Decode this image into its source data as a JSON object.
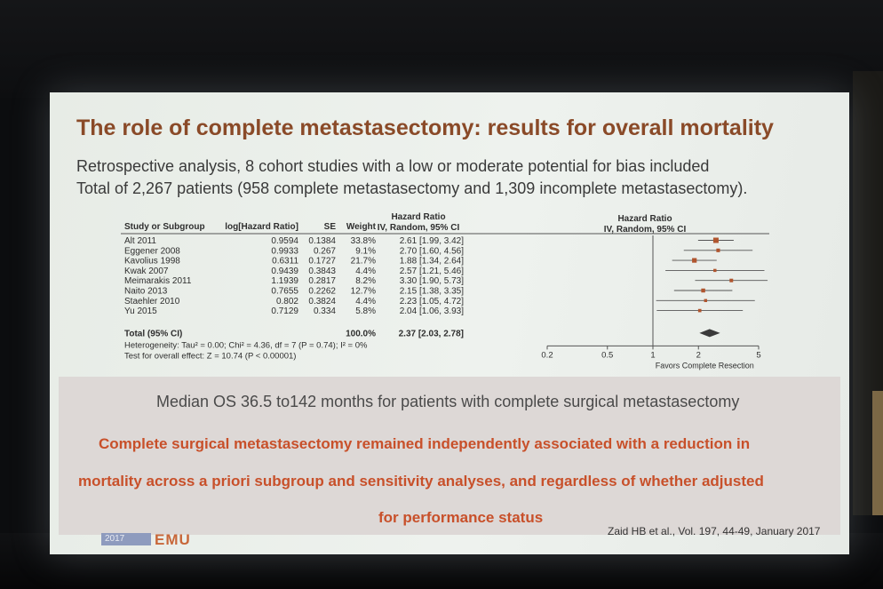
{
  "slide": {
    "title": "The role of complete metastasectomy: results for overall mortality",
    "subtitle_lines": [
      "Retrospective analysis, 8 cohort studies with a low or moderate potential for bias included",
      "Total of 2,267 patients (958 complete metastasectomy and 1,309 incomplete metastasectomy)."
    ],
    "median_text": "Median OS 36.5 to142 months for patients with complete surgical metastasectomy",
    "conclusion_lines": [
      "Complete surgical metastasectomy remained independently associated with a reduction in",
      "mortality across a priori subgroup and sensitivity analyses, and regardless of whether adjusted",
      "for performance status"
    ],
    "citation": "Zaid HB et al., Vol. 197, 44-49, January 2017",
    "logo_year": "2017",
    "logo_mark": "EMU"
  },
  "chart_data": {
    "type": "forest",
    "headers": {
      "study": "Study or Subgroup",
      "log_hr": "log[Hazard Ratio]",
      "se": "SE",
      "weight": "Weight",
      "hr_top": "Hazard Ratio",
      "hr_sub": "IV, Random, 95% CI",
      "plot_top": "Hazard Ratio",
      "plot_sub": "IV, Random, 95% CI"
    },
    "studies": [
      {
        "name": "Alt 2011",
        "log_hr": "0.9594",
        "se": "0.1384",
        "weight": "33.8%",
        "ci_text": "2.61 [1.99, 3.42]",
        "hr": 2.61,
        "lower": 1.99,
        "upper": 3.42,
        "weight_value": 33.8
      },
      {
        "name": "Eggener 2008",
        "log_hr": "0.9933",
        "se": "0.267",
        "weight": "9.1%",
        "ci_text": "2.70 [1.60, 4.56]",
        "hr": 2.7,
        "lower": 1.6,
        "upper": 4.56,
        "weight_value": 9.1
      },
      {
        "name": "Kavolius 1998",
        "log_hr": "0.6311",
        "se": "0.1727",
        "weight": "21.7%",
        "ci_text": "1.88 [1.34, 2.64]",
        "hr": 1.88,
        "lower": 1.34,
        "upper": 2.64,
        "weight_value": 21.7
      },
      {
        "name": "Kwak 2007",
        "log_hr": "0.9439",
        "se": "0.3843",
        "weight": "4.4%",
        "ci_text": "2.57 [1.21, 5.46]",
        "hr": 2.57,
        "lower": 1.21,
        "upper": 5.46,
        "weight_value": 4.4
      },
      {
        "name": "Meimarakis 2011",
        "log_hr": "1.1939",
        "se": "0.2817",
        "weight": "8.2%",
        "ci_text": "3.30 [1.90, 5.73]",
        "hr": 3.3,
        "lower": 1.9,
        "upper": 5.73,
        "weight_value": 8.2
      },
      {
        "name": "Naito 2013",
        "log_hr": "0.7655",
        "se": "0.2262",
        "weight": "12.7%",
        "ci_text": "2.15 [1.38, 3.35]",
        "hr": 2.15,
        "lower": 1.38,
        "upper": 3.35,
        "weight_value": 12.7
      },
      {
        "name": "Staehler 2010",
        "log_hr": "0.802",
        "se": "0.3824",
        "weight": "4.4%",
        "ci_text": "2.23 [1.05, 4.72]",
        "hr": 2.23,
        "lower": 1.05,
        "upper": 4.72,
        "weight_value": 4.4
      },
      {
        "name": "Yu 2015",
        "log_hr": "0.7129",
        "se": "0.334",
        "weight": "5.8%",
        "ci_text": "2.04 [1.06, 3.93]",
        "hr": 2.04,
        "lower": 1.06,
        "upper": 3.93,
        "weight_value": 5.8
      }
    ],
    "total": {
      "label": "Total (95% CI)",
      "weight": "100.0%",
      "ci_text": "2.37 [2.03, 2.78]",
      "hr": 2.37,
      "lower": 2.03,
      "upper": 2.78
    },
    "heterogeneity": "Heterogeneity: Tau² = 0.00; Chi² = 4.36, df = 7 (P = 0.74); I² = 0%",
    "overall_effect": "Test for overall effect: Z = 10.74 (P < 0.00001)",
    "axis": {
      "scale": "log",
      "range": [
        0.2,
        5
      ],
      "ticks": [
        0.2,
        0.5,
        1,
        2,
        5
      ],
      "tick_labels": [
        "0.2",
        "0.5",
        "1",
        "2",
        "5"
      ],
      "reference": 1,
      "favors_right": "Favors Complete Resection"
    },
    "colors": {
      "marker": "#b0552e",
      "text": "#2e2e2e",
      "line": "#555555"
    }
  }
}
